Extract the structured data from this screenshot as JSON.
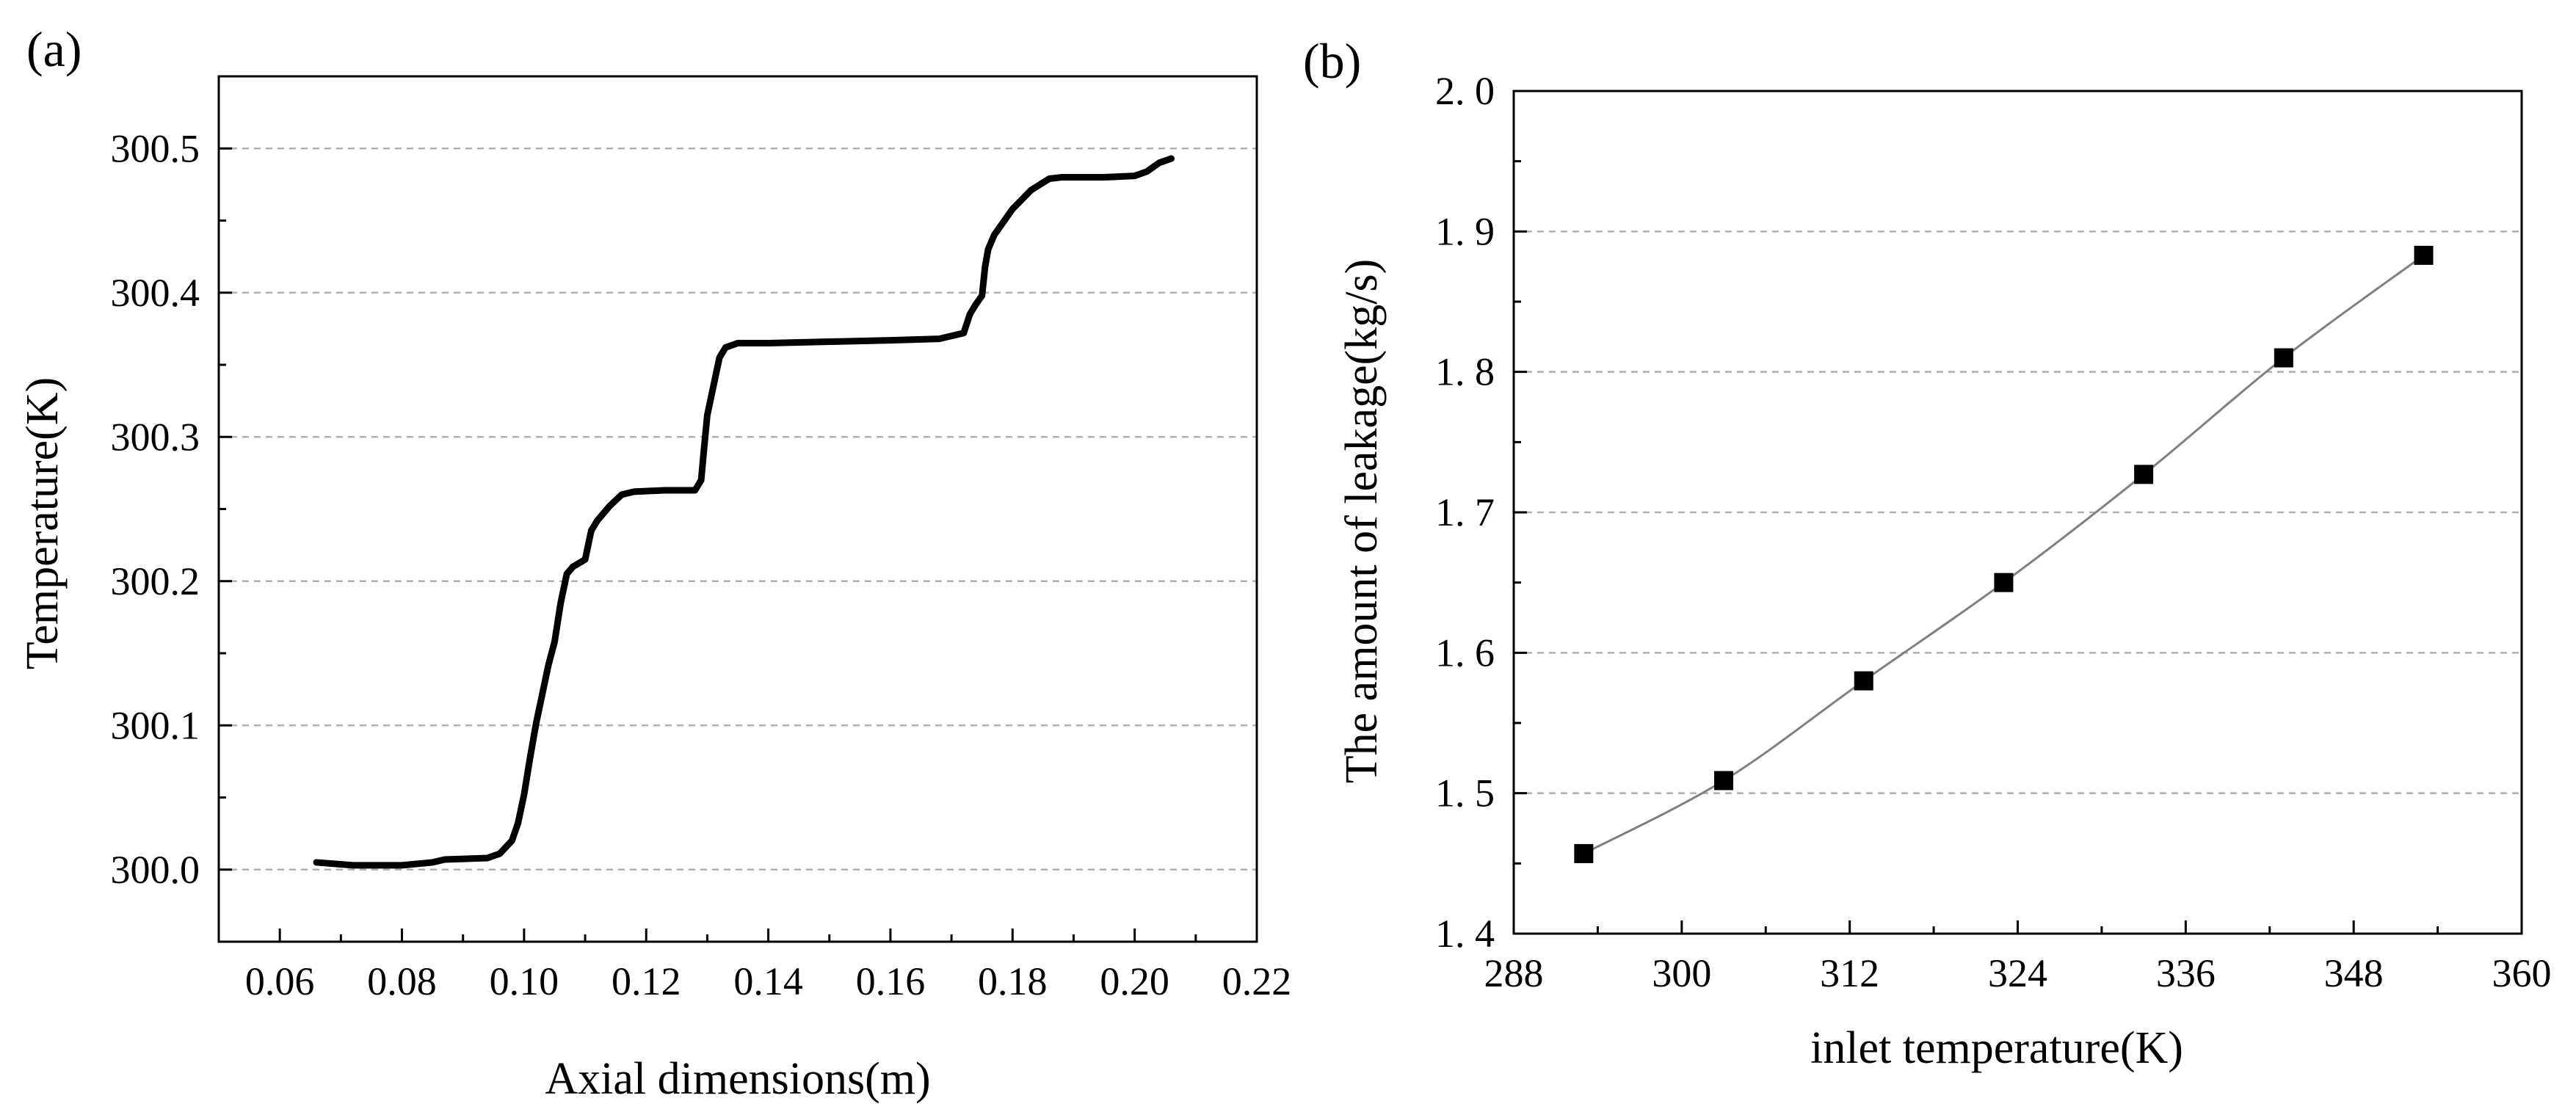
{
  "chart_data": [
    {
      "type": "line",
      "panel_label": "(a)",
      "title": "",
      "xlabel": "Axial dimensions(m)",
      "ylabel": "Temperature(K)",
      "xlim": [
        0.05,
        0.22
      ],
      "ylim": [
        299.95,
        300.55
      ],
      "xticks": [
        0.06,
        0.08,
        0.1,
        0.12,
        0.14,
        0.16,
        0.18,
        0.2,
        0.22
      ],
      "xtick_labels": [
        "0.06",
        "0.08",
        "0.10",
        "0.12",
        "0.14",
        "0.16",
        "0.18",
        "0.20",
        "0.22"
      ],
      "yticks": [
        300.0,
        300.1,
        300.2,
        300.3,
        300.4,
        300.5
      ],
      "ytick_labels": [
        "300.0",
        "300.1",
        "300.2",
        "300.3",
        "300.4",
        "300.5"
      ],
      "grid": "horizontal dashed",
      "series": [
        {
          "name": "Temperature",
          "color": "#000000",
          "x": [
            0.066,
            0.072,
            0.08,
            0.085,
            0.087,
            0.094,
            0.096,
            0.098,
            0.099,
            0.1,
            0.101,
            0.102,
            0.103,
            0.104,
            0.105,
            0.106,
            0.107,
            0.108,
            0.11,
            0.111,
            0.112,
            0.114,
            0.116,
            0.118,
            0.123,
            0.128,
            0.129,
            0.1295,
            0.13,
            0.131,
            0.132,
            0.133,
            0.135,
            0.14,
            0.15,
            0.16,
            0.168,
            0.172,
            0.173,
            0.174,
            0.175,
            0.1755,
            0.176,
            0.177,
            0.18,
            0.183,
            0.186,
            0.188,
            0.195,
            0.2,
            0.202,
            0.204,
            0.206
          ],
          "y": [
            300.005,
            300.003,
            300.003,
            300.005,
            300.007,
            300.008,
            300.011,
            300.02,
            300.032,
            300.052,
            300.078,
            300.102,
            300.122,
            300.142,
            300.158,
            300.185,
            300.205,
            300.21,
            300.215,
            300.235,
            300.242,
            300.252,
            300.26,
            300.262,
            300.263,
            300.263,
            300.27,
            300.293,
            300.315,
            300.335,
            300.355,
            300.362,
            300.365,
            300.365,
            300.366,
            300.367,
            300.368,
            300.372,
            300.385,
            300.392,
            300.398,
            300.418,
            300.43,
            300.44,
            300.458,
            300.471,
            300.479,
            300.48,
            300.48,
            300.481,
            300.484,
            300.49,
            300.493
          ]
        }
      ]
    },
    {
      "type": "line",
      "panel_label": "(b)",
      "title": "",
      "xlabel": "inlet temperature(K)",
      "ylabel": "The amount of leakage(kg/s)",
      "xlim": [
        288,
        360
      ],
      "ylim": [
        1.4,
        2.0
      ],
      "xticks": [
        288,
        300,
        312,
        324,
        336,
        348,
        360
      ],
      "xtick_labels": [
        "288",
        "300",
        "312",
        "324",
        "336",
        "348",
        "360"
      ],
      "yticks": [
        1.4,
        1.5,
        1.6,
        1.7,
        1.8,
        1.9,
        2.0
      ],
      "ytick_labels": [
        "1. 4",
        "1. 5",
        "1. 6",
        "1. 7",
        "1. 8",
        "1. 9",
        "2. 0"
      ],
      "grid": "horizontal dashed",
      "series": [
        {
          "name": "Leakage",
          "color": "#808080",
          "marker": "square",
          "marker_color": "#000000",
          "x": [
            293,
            303,
            313,
            323,
            333,
            343,
            353
          ],
          "y": [
            1.457,
            1.509,
            1.58,
            1.65,
            1.727,
            1.81,
            1.883
          ]
        }
      ]
    }
  ]
}
